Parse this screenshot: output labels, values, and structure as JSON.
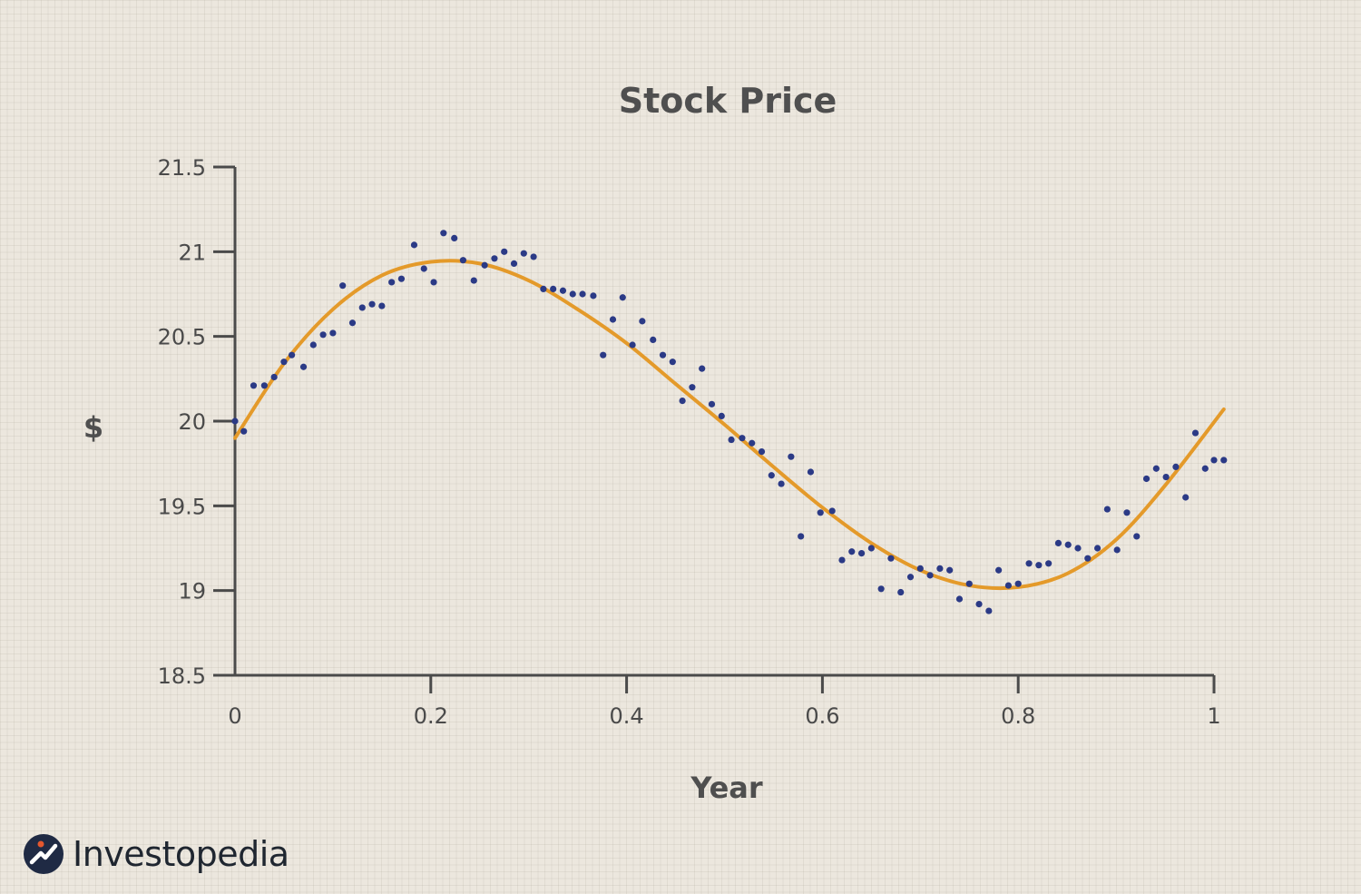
{
  "chart_data": {
    "type": "scatter",
    "title": "Stock Price",
    "xlabel": "Year",
    "ylabel": "$",
    "xlim": [
      0,
      1
    ],
    "ylim": [
      18.5,
      21.5
    ],
    "xticks": [
      "0",
      "0.2",
      "0.4",
      "0.6",
      "0.8",
      "1"
    ],
    "yticks": [
      "21.5",
      "21",
      "20.5",
      "20",
      "19.5",
      "19",
      "18.5"
    ],
    "grid": false,
    "legend": "none",
    "colors": {
      "points": "#2b3a86",
      "fit_line": "#e49a2a",
      "axis": "#4a4a4a"
    },
    "series": [
      {
        "kind": "points",
        "x": [
          0.0,
          0.009,
          0.019,
          0.03,
          0.04,
          0.05,
          0.058,
          0.07,
          0.08,
          0.09,
          0.1,
          0.11,
          0.12,
          0.13,
          0.14,
          0.15,
          0.16,
          0.17,
          0.183,
          0.193,
          0.203,
          0.213,
          0.224,
          0.233,
          0.244,
          0.255,
          0.265,
          0.275,
          0.285,
          0.295,
          0.305,
          0.315,
          0.325,
          0.335,
          0.345,
          0.355,
          0.366,
          0.376,
          0.386,
          0.396,
          0.406,
          0.416,
          0.427,
          0.437,
          0.447,
          0.457,
          0.467,
          0.477,
          0.487,
          0.497,
          0.507,
          0.518,
          0.528,
          0.538,
          0.548,
          0.558,
          0.568,
          0.578,
          0.588,
          0.598,
          0.61,
          0.62,
          0.63,
          0.64,
          0.65,
          0.66,
          0.67,
          0.68,
          0.69,
          0.7,
          0.71,
          0.72,
          0.73,
          0.74,
          0.75,
          0.76,
          0.77,
          0.78,
          0.79,
          0.8,
          0.811,
          0.821,
          0.831,
          0.841,
          0.851,
          0.861,
          0.871,
          0.881,
          0.891,
          0.901,
          0.911,
          0.921,
          0.931,
          0.941,
          0.951,
          0.961,
          0.971,
          0.981,
          0.991,
          1.0,
          1.01
        ],
        "y": [
          20.0,
          19.94,
          20.21,
          20.21,
          20.26,
          20.35,
          20.39,
          20.32,
          20.45,
          20.51,
          20.52,
          20.8,
          20.58,
          20.67,
          20.69,
          20.68,
          20.82,
          20.84,
          21.04,
          20.9,
          20.82,
          21.11,
          21.08,
          20.95,
          20.83,
          20.92,
          20.96,
          21.0,
          20.93,
          20.99,
          20.97,
          20.78,
          20.78,
          20.77,
          20.75,
          20.75,
          20.74,
          20.39,
          20.6,
          20.73,
          20.45,
          20.59,
          20.48,
          20.39,
          20.35,
          20.12,
          20.2,
          20.31,
          20.1,
          20.03,
          19.89,
          19.9,
          19.87,
          19.82,
          19.68,
          19.63,
          19.79,
          19.32,
          19.7,
          19.46,
          19.47,
          19.18,
          19.23,
          19.22,
          19.25,
          19.01,
          19.19,
          18.99,
          19.08,
          19.13,
          19.09,
          19.13,
          19.12,
          18.95,
          19.04,
          18.92,
          18.88,
          19.12,
          19.03,
          19.04,
          19.16,
          19.15,
          19.16,
          19.28,
          19.27,
          19.25,
          19.19,
          19.25,
          19.48,
          19.24,
          19.46,
          19.32,
          19.66,
          19.72,
          19.67,
          19.73,
          19.55,
          19.93,
          19.72,
          19.77,
          19.77
        ]
      },
      {
        "kind": "fit-line",
        "x": [
          0.0,
          0.05,
          0.1,
          0.15,
          0.2,
          0.25,
          0.3,
          0.35,
          0.4,
          0.45,
          0.5,
          0.55,
          0.6,
          0.65,
          0.7,
          0.75,
          0.8,
          0.85,
          0.9,
          0.95,
          1.01
        ],
        "y": [
          19.9,
          20.34,
          20.66,
          20.86,
          20.94,
          20.93,
          20.83,
          20.66,
          20.46,
          20.22,
          19.98,
          19.73,
          19.49,
          19.28,
          19.12,
          19.03,
          19.02,
          19.1,
          19.3,
          19.62,
          20.07
        ]
      }
    ]
  },
  "brand": {
    "name": "Investopedia",
    "logo": "investopedia-logo-icon"
  }
}
